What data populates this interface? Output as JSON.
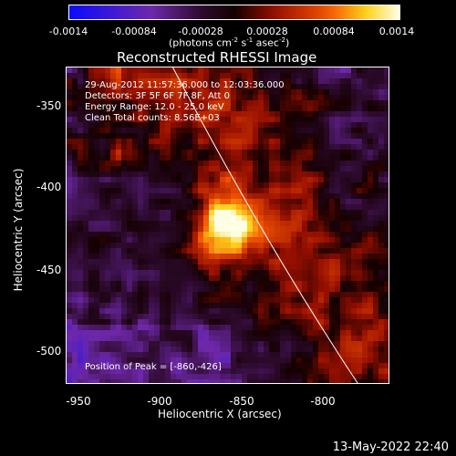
{
  "colorbar": {
    "ticks": [
      "-0.0014",
      "-0.00084",
      "-0.00028",
      "0.00028",
      "0.00084",
      "0.0014"
    ],
    "units": {
      "prefix": "(photons cm",
      "e1": "-2",
      "s": " s",
      "e2": "-1",
      "a": " asec",
      "e3": "-2",
      "suffix": ")"
    }
  },
  "title": "Reconstructed RHESSI Image",
  "annotations": {
    "time": "29-Aug-2012 11:57:36.000 to 12:03:36.000",
    "detectors": "Detectors: 3F 5F 6F 7F 8F, Att 0",
    "energy": "Energy Range: 12.0 - 25.0 keV",
    "clean": "Clean    Total counts: 8.56E+03",
    "peak": "Position of Peak = [-860,-426]"
  },
  "axes": {
    "xlabel": "Heliocentric X (arcsec)",
    "ylabel": "Heliocentric Y (arcsec)",
    "xticks": [
      "-950",
      "-900",
      "-850",
      "-800"
    ],
    "yticks": [
      "-350",
      "-400",
      "-450",
      "-500"
    ],
    "xlim": [
      -957,
      -762
    ],
    "ylim": [
      -525,
      -329
    ]
  },
  "footer_date": "13-May-2022 22:40",
  "colors": {
    "background": "#000000",
    "foreground": "#ffffff"
  }
}
